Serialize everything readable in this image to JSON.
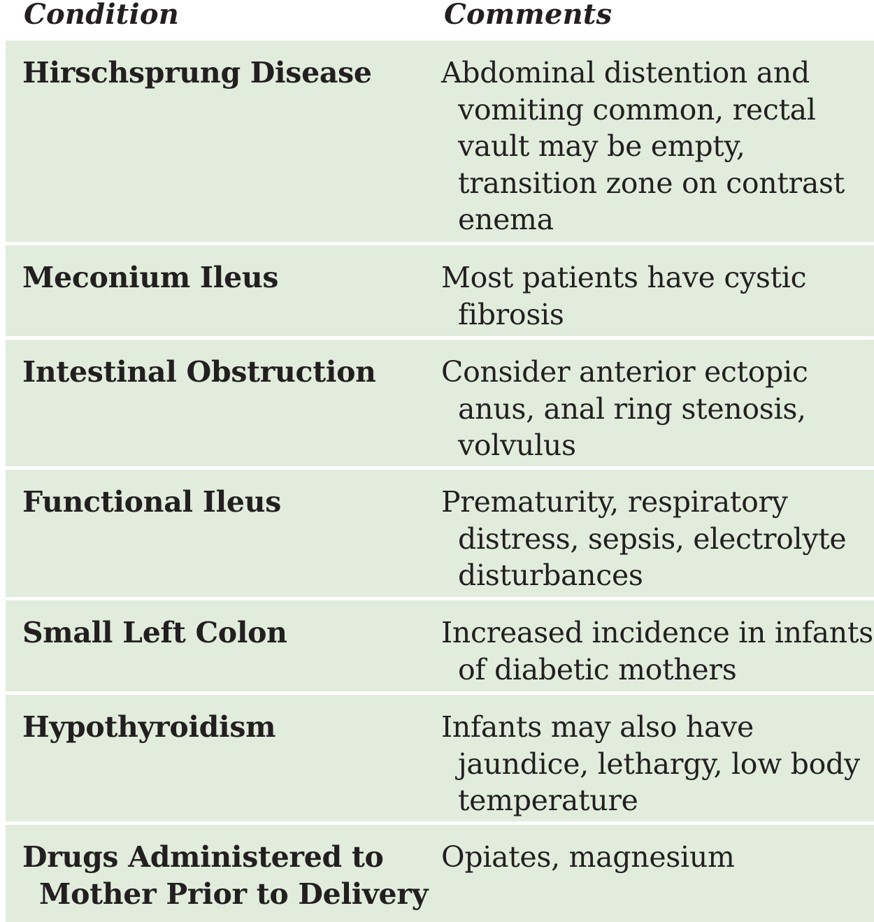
{
  "headers": {
    "condition": "Condition",
    "comments": "Comments"
  },
  "rows": [
    {
      "condition": "Hirschsprung Disease",
      "comments": "Abdominal distention and vomiting common, rectal vault may be empty, transition zone on contrast enema"
    },
    {
      "condition": "Meconium Ileus",
      "comments": "Most patients have cystic fibrosis"
    },
    {
      "condition": "Intestinal Obstruction",
      "comments": "Consider anterior ectopic anus, anal ring stenosis, volvulus"
    },
    {
      "condition": "Functional Ileus",
      "comments": "Prematurity, respiratory distress, sepsis, electrolyte disturbances"
    },
    {
      "condition": "Small Left Colon",
      "comments": "Increased incidence in infants of diabetic mothers"
    },
    {
      "condition": "Hypothyroidism",
      "comments": "Infants may also have jaundice, lethargy, low body temperature"
    },
    {
      "condition": "Drugs Administered to Mother Prior to Delivery",
      "comments": "Opiates, magnesium"
    }
  ],
  "colors": {
    "row_background": "#e1ecdd",
    "separator": "#ffffff",
    "text": "#231f20"
  }
}
